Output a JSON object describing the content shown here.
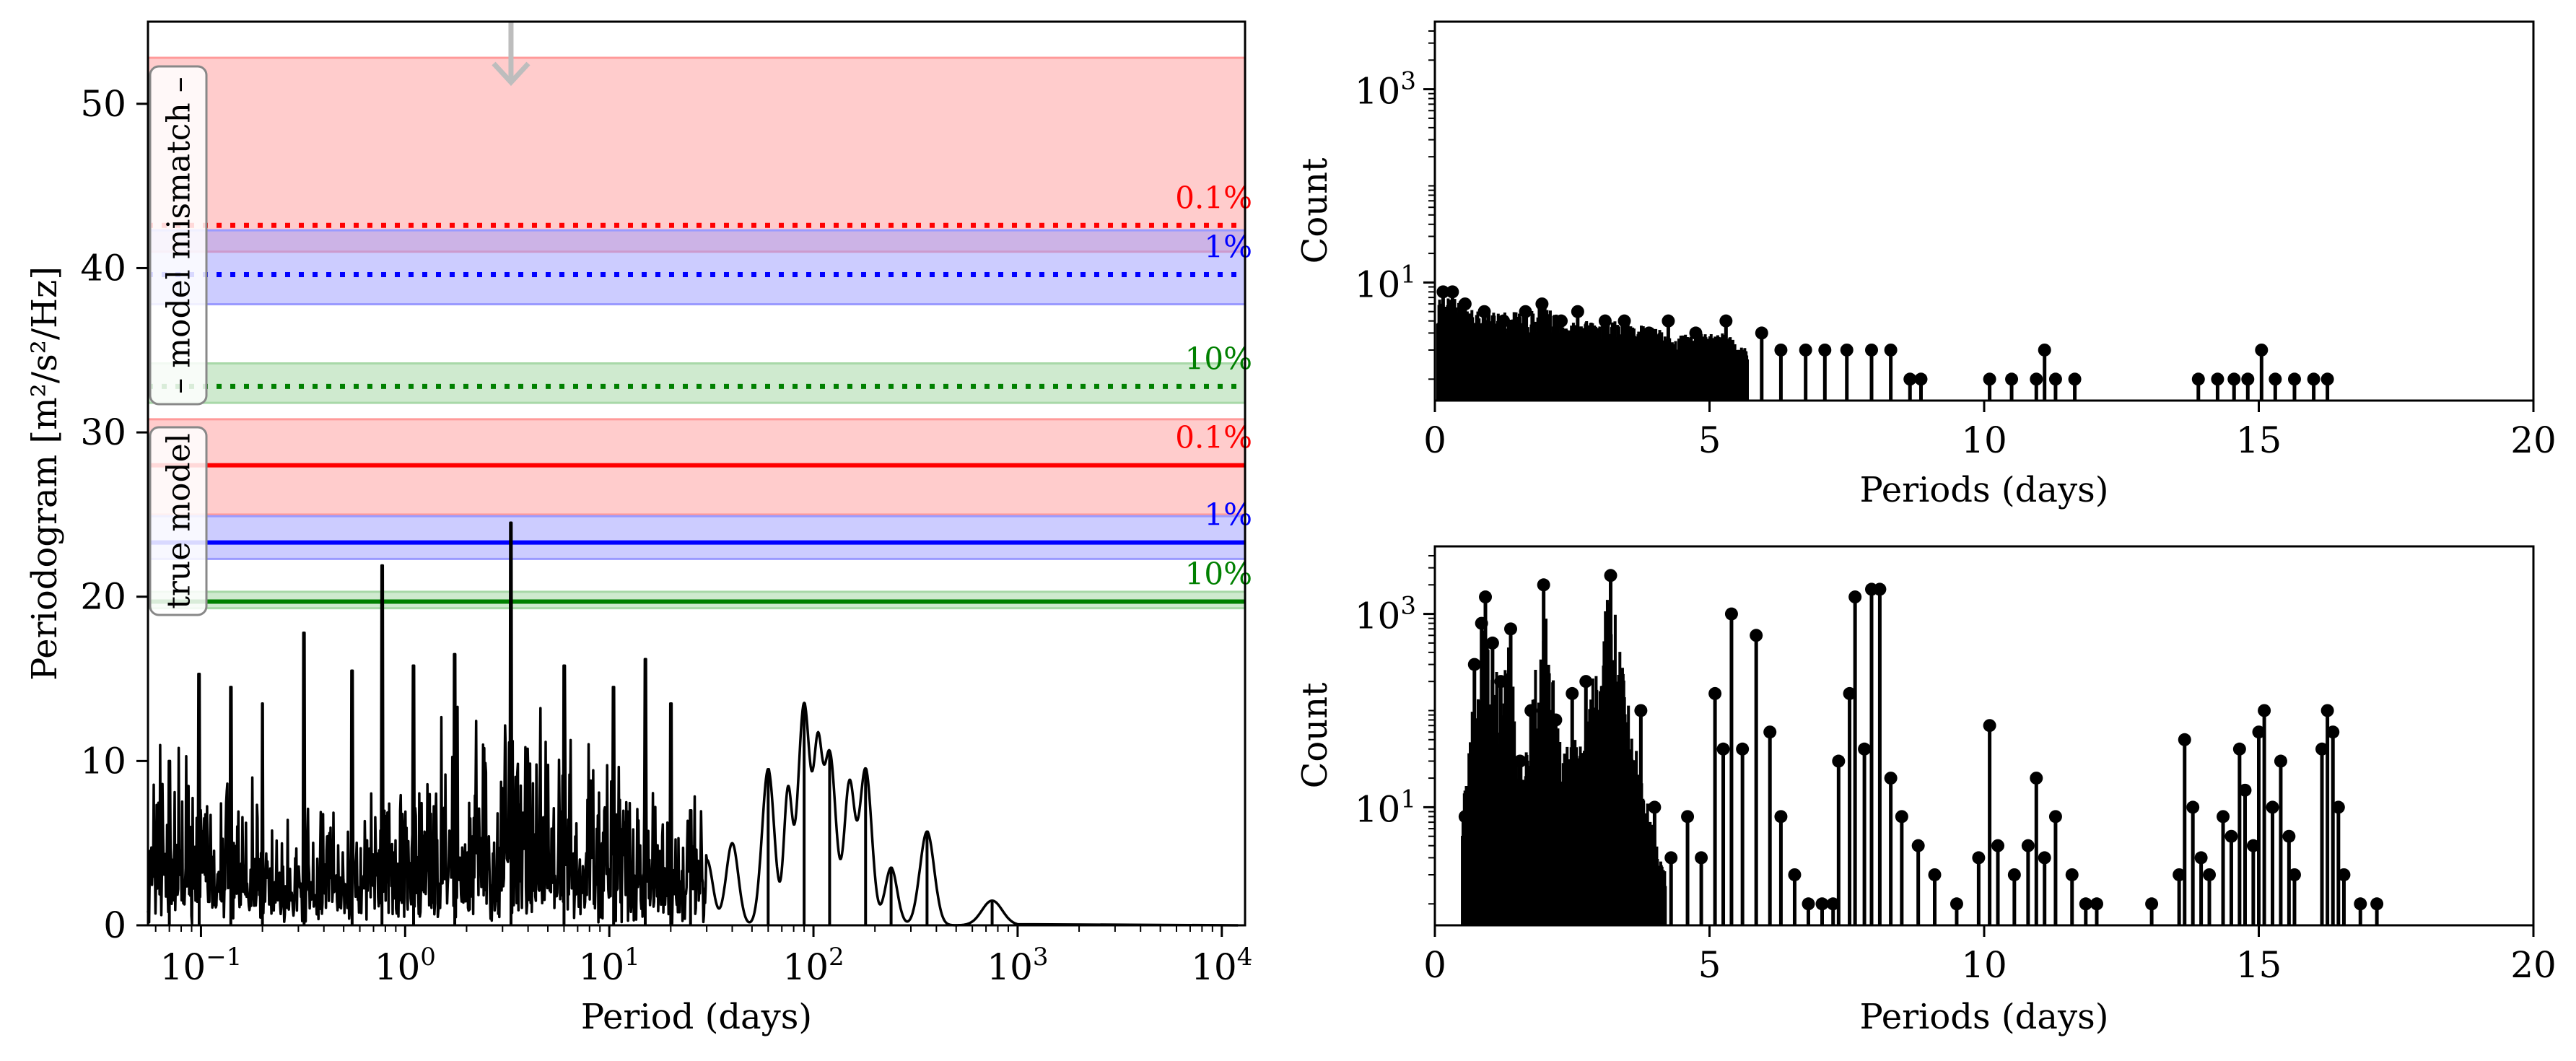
{
  "colors": {
    "red": "#ff0000",
    "blue": "#0000ff",
    "green": "#008000",
    "red_band": "#ff9a9a",
    "blue_band": "#9a9aff",
    "green_band": "#a8d8a8",
    "arrow": "#bdbdbd",
    "axis": "#000000"
  },
  "chart_data": [
    {
      "type": "line",
      "title": "",
      "xlabel": "Period (days)",
      "ylabel": "Periodogram [m²/s²/Hz]",
      "xscale": "log",
      "xlim": [
        0.055,
        13000
      ],
      "ylim": [
        0,
        55
      ],
      "x_ticks": [
        {
          "value": 0.1,
          "base": "10",
          "exp": "−1"
        },
        {
          "value": 1,
          "base": "10",
          "exp": "0"
        },
        {
          "value": 10,
          "base": "10",
          "exp": "1"
        },
        {
          "value": 100,
          "base": "10",
          "exp": "2"
        },
        {
          "value": 1000,
          "base": "10",
          "exp": "3"
        },
        {
          "value": 10000,
          "base": "10",
          "exp": "4"
        }
      ],
      "y_ticks": [
        0,
        10,
        20,
        30,
        40,
        50
      ],
      "annotations": {
        "model_mismatch_label": "– model mismatch –",
        "true_model_label": "true model",
        "arrow_period": 3.3
      },
      "thresholds": [
        {
          "group": "model mismatch",
          "fap": "0.1%",
          "level": 42.6,
          "band": [
            41.0,
            52.8
          ],
          "color": "red",
          "style": "dotted"
        },
        {
          "group": "model mismatch",
          "fap": "1%",
          "level": 39.6,
          "band": [
            37.8,
            42.3
          ],
          "color": "blue",
          "style": "dotted"
        },
        {
          "group": "model mismatch",
          "fap": "10%",
          "level": 32.8,
          "band": [
            31.8,
            34.2
          ],
          "color": "green",
          "style": "dotted"
        },
        {
          "group": "true model",
          "fap": "0.1%",
          "level": 28.0,
          "band": [
            25.0,
            30.8
          ],
          "color": "red",
          "style": "solid"
        },
        {
          "group": "true model",
          "fap": "1%",
          "level": 23.3,
          "band": [
            22.3,
            24.9
          ],
          "color": "blue",
          "style": "solid"
        },
        {
          "group": "true model",
          "fap": "10%",
          "level": 19.7,
          "band": [
            19.3,
            20.3
          ],
          "color": "green",
          "style": "solid"
        }
      ],
      "peaks": [
        {
          "x": 0.07,
          "y": 10.0
        },
        {
          "x": 0.098,
          "y": 15.3
        },
        {
          "x": 0.14,
          "y": 14.5
        },
        {
          "x": 0.2,
          "y": 13.5
        },
        {
          "x": 0.32,
          "y": 17.8
        },
        {
          "x": 0.55,
          "y": 15.5
        },
        {
          "x": 0.77,
          "y": 21.9
        },
        {
          "x": 1.1,
          "y": 15.8
        },
        {
          "x": 1.75,
          "y": 16.5
        },
        {
          "x": 3.3,
          "y": 24.5
        },
        {
          "x": 6.0,
          "y": 15.8
        },
        {
          "x": 10.5,
          "y": 14.5
        },
        {
          "x": 15.0,
          "y": 16.2
        },
        {
          "x": 20.0,
          "y": 13.5
        },
        {
          "x": 25.0,
          "y": 7.0
        },
        {
          "x": 60.0,
          "y": 9.5
        },
        {
          "x": 90.0,
          "y": 13.5
        },
        {
          "x": 120.0,
          "y": 10.5
        },
        {
          "x": 180.0,
          "y": 9.5
        },
        {
          "x": 240.0,
          "y": 3.5
        },
        {
          "x": 360.0,
          "y": 5.7
        },
        {
          "x": 750.0,
          "y": 1.5
        }
      ]
    },
    {
      "type": "bar",
      "title": "",
      "xlabel": "Periods (days)",
      "ylabel": "Count",
      "xlim": [
        0,
        20
      ],
      "yscale": "log",
      "ylim": [
        0.6,
        5000
      ],
      "x_ticks": [
        0,
        5,
        10,
        15,
        20
      ],
      "y_ticks": [
        {
          "value": 10,
          "base": "10",
          "exp": "1"
        },
        {
          "value": 1000,
          "base": "10",
          "exp": "3"
        }
      ],
      "dense_envelope": [
        {
          "x": 0.05,
          "y": 8
        },
        {
          "x": 0.4,
          "y": 7
        },
        {
          "x": 0.8,
          "y": 5
        },
        {
          "x": 1.5,
          "y": 5
        },
        {
          "x": 1.9,
          "y": 6
        },
        {
          "x": 2.5,
          "y": 4
        },
        {
          "x": 3.5,
          "y": 4
        },
        {
          "x": 4.3,
          "y": 3
        },
        {
          "x": 5.3,
          "y": 3
        },
        {
          "x": 5.7,
          "y": 2
        }
      ],
      "stems": [
        {
          "x": 0.15,
          "y": 8
        },
        {
          "x": 0.32,
          "y": 8
        },
        {
          "x": 0.55,
          "y": 6
        },
        {
          "x": 0.9,
          "y": 5
        },
        {
          "x": 1.25,
          "y": 4
        },
        {
          "x": 1.65,
          "y": 5
        },
        {
          "x": 1.95,
          "y": 6
        },
        {
          "x": 2.3,
          "y": 4
        },
        {
          "x": 2.6,
          "y": 5
        },
        {
          "x": 3.1,
          "y": 4
        },
        {
          "x": 3.45,
          "y": 4
        },
        {
          "x": 3.9,
          "y": 3
        },
        {
          "x": 4.25,
          "y": 4
        },
        {
          "x": 4.75,
          "y": 3
        },
        {
          "x": 5.3,
          "y": 4
        },
        {
          "x": 5.95,
          "y": 3
        },
        {
          "x": 6.3,
          "y": 2
        },
        {
          "x": 6.75,
          "y": 2
        },
        {
          "x": 7.1,
          "y": 2
        },
        {
          "x": 7.5,
          "y": 2
        },
        {
          "x": 7.95,
          "y": 2
        },
        {
          "x": 8.3,
          "y": 2
        },
        {
          "x": 8.65,
          "y": 1
        },
        {
          "x": 8.85,
          "y": 1
        },
        {
          "x": 10.1,
          "y": 1
        },
        {
          "x": 10.5,
          "y": 1
        },
        {
          "x": 10.95,
          "y": 1
        },
        {
          "x": 11.1,
          "y": 2
        },
        {
          "x": 11.3,
          "y": 1
        },
        {
          "x": 11.65,
          "y": 1
        },
        {
          "x": 13.9,
          "y": 1
        },
        {
          "x": 14.25,
          "y": 1
        },
        {
          "x": 14.55,
          "y": 1
        },
        {
          "x": 14.8,
          "y": 1
        },
        {
          "x": 15.05,
          "y": 2
        },
        {
          "x": 15.3,
          "y": 1
        },
        {
          "x": 15.65,
          "y": 1
        },
        {
          "x": 16.0,
          "y": 1
        },
        {
          "x": 16.25,
          "y": 1
        }
      ]
    },
    {
      "type": "bar",
      "title": "",
      "xlabel": "Periods (days)",
      "ylabel": "Count",
      "xlim": [
        0,
        20
      ],
      "yscale": "log",
      "ylim": [
        0.6,
        5000
      ],
      "x_ticks": [
        0,
        5,
        10,
        15,
        20
      ],
      "y_ticks": [
        {
          "value": 10,
          "base": "10",
          "exp": "1"
        },
        {
          "value": 1000,
          "base": "10",
          "exp": "3"
        }
      ],
      "dense_envelope": [
        {
          "x": 0.5,
          "y": 10
        },
        {
          "x": 0.7,
          "y": 150
        },
        {
          "x": 0.9,
          "y": 900
        },
        {
          "x": 1.05,
          "y": 300
        },
        {
          "x": 1.35,
          "y": 500
        },
        {
          "x": 1.6,
          "y": 20
        },
        {
          "x": 2.0,
          "y": 1800
        },
        {
          "x": 2.3,
          "y": 40
        },
        {
          "x": 2.7,
          "y": 60
        },
        {
          "x": 3.2,
          "y": 2300
        },
        {
          "x": 3.6,
          "y": 60
        },
        {
          "x": 3.9,
          "y": 10
        },
        {
          "x": 4.2,
          "y": 2
        }
      ],
      "stems": [
        {
          "x": 0.55,
          "y": 8
        },
        {
          "x": 0.72,
          "y": 300
        },
        {
          "x": 0.85,
          "y": 800
        },
        {
          "x": 0.92,
          "y": 1500
        },
        {
          "x": 1.05,
          "y": 500
        },
        {
          "x": 1.2,
          "y": 200
        },
        {
          "x": 1.38,
          "y": 700
        },
        {
          "x": 1.55,
          "y": 30
        },
        {
          "x": 1.75,
          "y": 100
        },
        {
          "x": 1.98,
          "y": 2000
        },
        {
          "x": 2.2,
          "y": 80
        },
        {
          "x": 2.5,
          "y": 150
        },
        {
          "x": 2.75,
          "y": 200
        },
        {
          "x": 2.95,
          "y": 50
        },
        {
          "x": 3.2,
          "y": 2500
        },
        {
          "x": 3.5,
          "y": 30
        },
        {
          "x": 3.75,
          "y": 100
        },
        {
          "x": 4.0,
          "y": 10
        },
        {
          "x": 4.3,
          "y": 3
        },
        {
          "x": 4.6,
          "y": 8
        },
        {
          "x": 4.85,
          "y": 3
        },
        {
          "x": 5.1,
          "y": 150
        },
        {
          "x": 5.25,
          "y": 40
        },
        {
          "x": 5.4,
          "y": 1000
        },
        {
          "x": 5.6,
          "y": 40
        },
        {
          "x": 5.85,
          "y": 600
        },
        {
          "x": 6.1,
          "y": 60
        },
        {
          "x": 6.3,
          "y": 8
        },
        {
          "x": 6.55,
          "y": 2
        },
        {
          "x": 6.8,
          "y": 1
        },
        {
          "x": 7.05,
          "y": 1
        },
        {
          "x": 7.25,
          "y": 1
        },
        {
          "x": 7.35,
          "y": 30
        },
        {
          "x": 7.55,
          "y": 150
        },
        {
          "x": 7.65,
          "y": 1500
        },
        {
          "x": 7.82,
          "y": 40
        },
        {
          "x": 7.95,
          "y": 1800
        },
        {
          "x": 8.1,
          "y": 1800
        },
        {
          "x": 8.3,
          "y": 20
        },
        {
          "x": 8.5,
          "y": 8
        },
        {
          "x": 8.8,
          "y": 4
        },
        {
          "x": 9.1,
          "y": 2
        },
        {
          "x": 9.5,
          "y": 1
        },
        {
          "x": 9.9,
          "y": 3
        },
        {
          "x": 10.1,
          "y": 70
        },
        {
          "x": 10.25,
          "y": 4
        },
        {
          "x": 10.55,
          "y": 2
        },
        {
          "x": 10.8,
          "y": 4
        },
        {
          "x": 10.95,
          "y": 20
        },
        {
          "x": 11.1,
          "y": 3
        },
        {
          "x": 11.3,
          "y": 8
        },
        {
          "x": 11.6,
          "y": 2
        },
        {
          "x": 11.85,
          "y": 1
        },
        {
          "x": 12.05,
          "y": 1
        },
        {
          "x": 13.05,
          "y": 1
        },
        {
          "x": 13.55,
          "y": 2
        },
        {
          "x": 13.65,
          "y": 50
        },
        {
          "x": 13.8,
          "y": 10
        },
        {
          "x": 13.95,
          "y": 3
        },
        {
          "x": 14.1,
          "y": 2
        },
        {
          "x": 14.35,
          "y": 8
        },
        {
          "x": 14.5,
          "y": 5
        },
        {
          "x": 14.65,
          "y": 40
        },
        {
          "x": 14.75,
          "y": 15
        },
        {
          "x": 14.9,
          "y": 4
        },
        {
          "x": 15.0,
          "y": 60
        },
        {
          "x": 15.1,
          "y": 100
        },
        {
          "x": 15.25,
          "y": 10
        },
        {
          "x": 15.4,
          "y": 30
        },
        {
          "x": 15.55,
          "y": 5
        },
        {
          "x": 15.65,
          "y": 2
        },
        {
          "x": 16.15,
          "y": 40
        },
        {
          "x": 16.25,
          "y": 100
        },
        {
          "x": 16.35,
          "y": 60
        },
        {
          "x": 16.45,
          "y": 10
        },
        {
          "x": 16.55,
          "y": 2
        },
        {
          "x": 16.85,
          "y": 1
        },
        {
          "x": 17.15,
          "y": 1
        }
      ]
    }
  ]
}
